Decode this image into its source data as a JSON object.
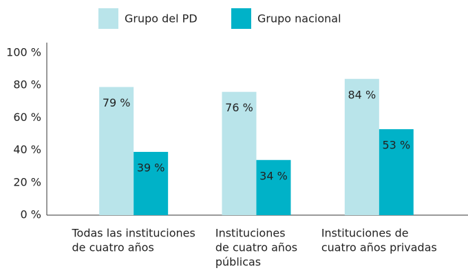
{
  "chart_data": {
    "type": "bar",
    "categories": [
      [
        "Todas las instituciones",
        "de cuatro años"
      ],
      [
        "Instituciones",
        "de cuatro años",
        "públicas"
      ],
      [
        "Instituciones de",
        "cuatro años privadas"
      ]
    ],
    "series": [
      {
        "name": "Grupo del PD",
        "color": "#b9e4ea",
        "values": [
          79,
          76,
          84
        ],
        "value_labels": [
          "79 %",
          "76 %",
          "84 %"
        ]
      },
      {
        "name": "Grupo nacional",
        "color": "#00b2c8",
        "values": [
          39,
          34,
          53
        ],
        "value_labels": [
          "39 %",
          "34 %",
          "53 %"
        ]
      }
    ],
    "ylim": [
      0,
      100
    ],
    "yticks": [
      {
        "value": 0,
        "label": "0 %"
      },
      {
        "value": 20,
        "label": "20 %"
      },
      {
        "value": 40,
        "label": "40 %"
      },
      {
        "value": 60,
        "label": "60 %"
      },
      {
        "value": 80,
        "label": "80 %"
      },
      {
        "value": 100,
        "label": "100 %"
      }
    ],
    "grid": false,
    "legend": "top"
  }
}
